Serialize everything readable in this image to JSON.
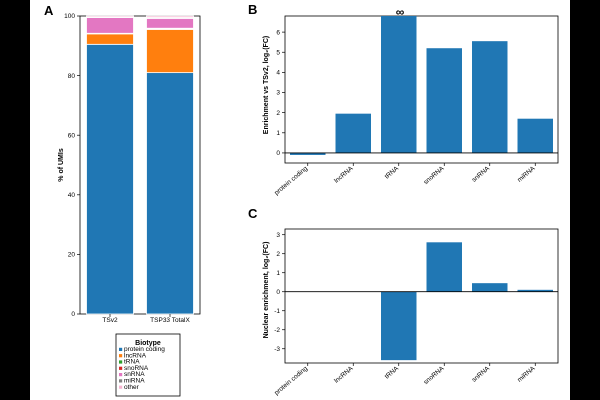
{
  "panels": {
    "a": "A",
    "b": "B",
    "c": "C"
  },
  "colors": {
    "protein coding": "#2077b4",
    "lncRNA": "#ff7f0e",
    "tRNA": "#2ca02c",
    "snoRNA": "#d62728",
    "snRNA": "#e377c2",
    "miRNA": "#7f7f7f",
    "other": "#f7b6d2",
    "bar": "#2077b4"
  },
  "legend": {
    "title": "Biotype",
    "items": [
      "protein coding",
      "lncRNA",
      "tRNA",
      "snoRNA",
      "snRNA",
      "miRNA",
      "other"
    ]
  },
  "chart_data": [
    {
      "id": "A",
      "type": "bar",
      "stacked": true,
      "title": "",
      "xlabel": "",
      "ylabel": "% of UMIs",
      "ylim": [
        0,
        100
      ],
      "yticks": [
        0,
        20,
        40,
        60,
        80,
        100
      ],
      "categories": [
        "TSv2",
        "TSP33 TotalX"
      ],
      "series": [
        {
          "name": "protein coding",
          "values": [
            90.5,
            81
          ]
        },
        {
          "name": "lncRNA",
          "values": [
            3.5,
            14.5
          ]
        },
        {
          "name": "tRNA",
          "values": [
            0.1,
            0.2
          ]
        },
        {
          "name": "snoRNA",
          "values": [
            0.1,
            0.2
          ]
        },
        {
          "name": "snRNA",
          "values": [
            5.3,
            3.3
          ]
        },
        {
          "name": "miRNA",
          "values": [
            0.1,
            0.3
          ]
        },
        {
          "name": "other",
          "values": [
            0.4,
            0.5
          ]
        }
      ]
    },
    {
      "id": "B",
      "type": "bar",
      "title": "",
      "xlabel": "",
      "ylabel": "Enrichment vs TSv2, log₂(FC)",
      "ylim": [
        -0.5,
        6.8
      ],
      "yticks": [
        0,
        1,
        2,
        3,
        4,
        5,
        6
      ],
      "categories": [
        "protein coding",
        "lncRNA",
        "tRNA",
        "snoRNA",
        "snRNA",
        "miRNA"
      ],
      "values": [
        -0.1,
        1.95,
        6.8,
        5.2,
        5.55,
        1.7
      ],
      "annotation": "∞"
    },
    {
      "id": "C",
      "type": "bar",
      "title": "",
      "xlabel": "",
      "ylabel": "Nuclear enrichment, log₂(FC)",
      "ylim": [
        -3.75,
        3.3
      ],
      "yticks": [
        -3,
        -2,
        -1,
        0,
        1,
        2,
        3
      ],
      "categories": [
        "protein coding",
        "lncRNA",
        "tRNA",
        "snoRNA",
        "snRNA",
        "miRNA"
      ],
      "values": [
        0,
        0,
        -3.6,
        2.6,
        0.45,
        0.1
      ]
    }
  ]
}
